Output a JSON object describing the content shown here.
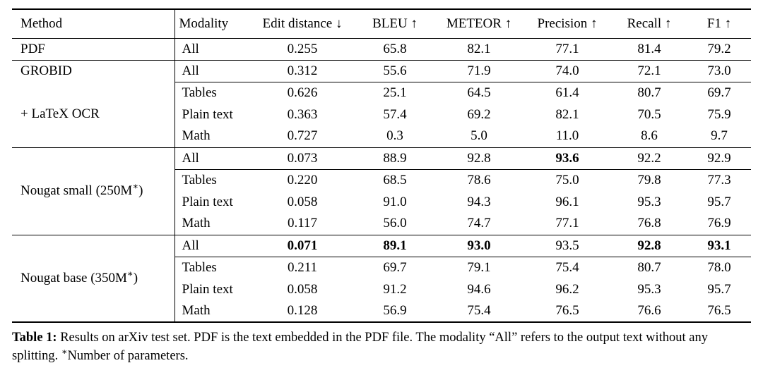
{
  "page": {
    "background": "#ffffff",
    "text_color": "#000000",
    "rule_color": "#000000"
  },
  "table": {
    "columns": [
      {
        "label": "Method",
        "align": "left"
      },
      {
        "label": "Modality",
        "align": "left"
      },
      {
        "label": "Edit distance ↓",
        "align": "center"
      },
      {
        "label": "BLEU ↑",
        "align": "center"
      },
      {
        "label": "METEOR ↑",
        "align": "center"
      },
      {
        "label": "Precision ↑",
        "align": "center"
      },
      {
        "label": "Recall ↑",
        "align": "center"
      },
      {
        "label": "F1 ↑",
        "align": "center"
      }
    ],
    "groups": [
      {
        "method_blocks": [
          {
            "label": "PDF",
            "start": 0,
            "span": 1
          }
        ],
        "rows": [
          {
            "modality": "All",
            "values": [
              "0.255",
              "65.8",
              "82.1",
              "77.1",
              "81.4",
              "79.2"
            ],
            "bold": [],
            "rule_below": false
          }
        ]
      },
      {
        "method_blocks": [
          {
            "label": "GROBID",
            "start": 0,
            "span": 1
          },
          {
            "label": "+ LaTeX OCR",
            "start": 1,
            "span": 3
          }
        ],
        "rows": [
          {
            "modality": "All",
            "values": [
              "0.312",
              "55.6",
              "71.9",
              "74.0",
              "72.1",
              "73.0"
            ],
            "bold": [],
            "rule_below": true
          },
          {
            "modality": "Tables",
            "values": [
              "0.626",
              "25.1",
              "64.5",
              "61.4",
              "80.7",
              "69.7"
            ],
            "bold": [],
            "rule_below": false
          },
          {
            "modality": "Plain text",
            "values": [
              "0.363",
              "57.4",
              "69.2",
              "82.1",
              "70.5",
              "75.9"
            ],
            "bold": [],
            "rule_below": false
          },
          {
            "modality": "Math",
            "values": [
              "0.727",
              "0.3",
              "5.0",
              "11.0",
              "8.6",
              "9.7"
            ],
            "bold": [],
            "rule_below": false
          }
        ]
      },
      {
        "method_blocks": [
          {
            "label": "Nougat small (250M*)",
            "start": 0,
            "span": 4
          }
        ],
        "rows": [
          {
            "modality": "All",
            "values": [
              "0.073",
              "88.9",
              "92.8",
              "93.6",
              "92.2",
              "92.9"
            ],
            "bold": [
              3
            ],
            "rule_below": true
          },
          {
            "modality": "Tables",
            "values": [
              "0.220",
              "68.5",
              "78.6",
              "75.0",
              "79.8",
              "77.3"
            ],
            "bold": [],
            "rule_below": false
          },
          {
            "modality": "Plain text",
            "values": [
              "0.058",
              "91.0",
              "94.3",
              "96.1",
              "95.3",
              "95.7"
            ],
            "bold": [],
            "rule_below": false
          },
          {
            "modality": "Math",
            "values": [
              "0.117",
              "56.0",
              "74.7",
              "77.1",
              "76.8",
              "76.9"
            ],
            "bold": [],
            "rule_below": false
          }
        ]
      },
      {
        "method_blocks": [
          {
            "label": "Nougat base (350M*)",
            "start": 0,
            "span": 4
          }
        ],
        "rows": [
          {
            "modality": "All",
            "values": [
              "0.071",
              "89.1",
              "93.0",
              "93.5",
              "92.8",
              "93.1"
            ],
            "bold": [
              0,
              1,
              2,
              4,
              5
            ],
            "rule_below": true
          },
          {
            "modality": "Tables",
            "values": [
              "0.211",
              "69.7",
              "79.1",
              "75.4",
              "80.7",
              "78.0"
            ],
            "bold": [],
            "rule_below": false
          },
          {
            "modality": "Plain text",
            "values": [
              "0.058",
              "91.2",
              "94.6",
              "96.2",
              "95.3",
              "95.7"
            ],
            "bold": [],
            "rule_below": false
          },
          {
            "modality": "Math",
            "values": [
              "0.128",
              "56.9",
              "75.4",
              "76.5",
              "76.6",
              "76.5"
            ],
            "bold": [],
            "rule_below": false
          }
        ]
      }
    ]
  },
  "caption": {
    "label": "Table 1:",
    "text": "Results on arXiv test set. PDF is the text embedded in the PDF file. The modality “All” refers to the output text without any splitting. *Number of parameters."
  }
}
